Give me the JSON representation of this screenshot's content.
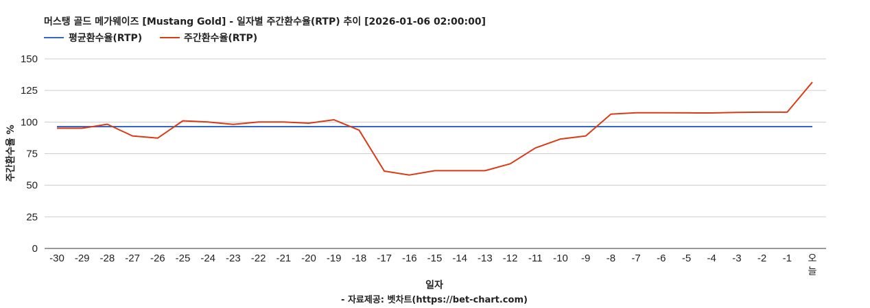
{
  "title": "머스탱 골드 메가웨이즈 [Mustang Gold] - 일자별 주간환수율(RTP) 추이 [2026-01-06 02:00:00]",
  "legend": [
    {
      "label": "평균환수율(RTP)",
      "color": "#3366cc"
    },
    {
      "label": "주간환수율(RTP)",
      "color": "#dc3912"
    }
  ],
  "xaxis_title": "일자",
  "yaxis_title": "주간환수율 %",
  "credit": "- 자료제공: 벳차트(https://bet-chart.com)",
  "chart_data": {
    "type": "line",
    "title": "머스탱 골드 메가웨이즈 [Mustang Gold] - 일자별 주간환수율(RTP) 추이 [2026-01-06 02:00:00]",
    "xlabel": "일자",
    "ylabel": "주간환수율 %",
    "ylim": [
      0,
      150
    ],
    "yticks": [
      0,
      25,
      50,
      75,
      100,
      125,
      150
    ],
    "grid": true,
    "legend_position": "top-left",
    "categories": [
      "-30",
      "-29",
      "-28",
      "-27",
      "-26",
      "-25",
      "-24",
      "-23",
      "-22",
      "-21",
      "-20",
      "-19",
      "-18",
      "-17",
      "-16",
      "-15",
      "-14",
      "-13",
      "-12",
      "-11",
      "-10",
      "-9",
      "-8",
      "-7",
      "-6",
      "-5",
      "-4",
      "-3",
      "-2",
      "-1",
      "오늘"
    ],
    "series": [
      {
        "name": "평균환수율(RTP)",
        "color": "#3366cc",
        "values": [
          96.4,
          96.4,
          96.4,
          96.4,
          96.4,
          96.4,
          96.4,
          96.4,
          96.4,
          96.4,
          96.4,
          96.4,
          96.4,
          96.4,
          96.4,
          96.4,
          96.4,
          96.4,
          96.4,
          96.4,
          96.4,
          96.4,
          96.4,
          96.4,
          96.4,
          96.4,
          96.4,
          96.4,
          96.4,
          96.4,
          96.4
        ]
      },
      {
        "name": "주간환수율(RTP)",
        "color": "#dc3912",
        "values": [
          95.1,
          95.1,
          98.3,
          89.0,
          87.3,
          101.0,
          100.0,
          98.2,
          100.0,
          100.0,
          99.1,
          101.8,
          93.6,
          61.2,
          58.1,
          61.5,
          61.5,
          61.5,
          67.0,
          79.5,
          86.6,
          89.0,
          106.3,
          107.4,
          107.4,
          107.3,
          107.2,
          107.6,
          107.8,
          107.8,
          131.6
        ]
      }
    ]
  }
}
